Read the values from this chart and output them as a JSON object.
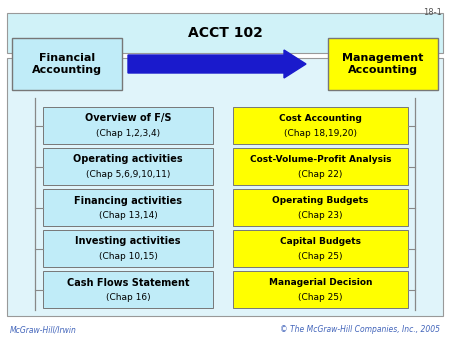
{
  "title": "ACCT 102",
  "title_bg": "#d0f2f8",
  "page_num": "18-1",
  "left_header": "Financial\nAccounting",
  "right_header": "Management\nAccounting",
  "left_header_bg": "#c0ecf8",
  "right_header_bg": "#ffff00",
  "left_boxes": [
    {
      "line1": "Overview of F/S",
      "line2": "(Chap 1,2,3,4)"
    },
    {
      "line1": "Operating activities",
      "line2": "(Chap 5,6,9,10,11)"
    },
    {
      "line1": "Financing activities",
      "line2": "(Chap 13,14)"
    },
    {
      "line1": "Investing activities",
      "line2": "(Chap 10,15)"
    },
    {
      "line1": "Cash Flows Statement",
      "line2": "(Chap 16)"
    }
  ],
  "right_boxes": [
    {
      "line1": "Cost Accounting",
      "line2": "(Chap 18,19,20)"
    },
    {
      "line1": "Cost-Volume-Profit Analysis",
      "line2": "(Chap 22)"
    },
    {
      "line1": "Operating Budgets",
      "line2": "(Chap 23)"
    },
    {
      "line1": "Capital Budgets",
      "line2": "(Chap 25)"
    },
    {
      "line1": "Managerial Decision",
      "line2": "(Chap 25)"
    }
  ],
  "left_box_bg": "#c0ecf8",
  "right_box_bg": "#ffff00",
  "arrow_color": "#1a1acc",
  "footer_left": "McGraw-Hill/Irwin",
  "footer_right": "© The McGraw-Hill Companies, Inc., 2005",
  "footer_color": "#4466bb",
  "bg_color": "#ffffff",
  "outer_bg": "#e0f4fa"
}
